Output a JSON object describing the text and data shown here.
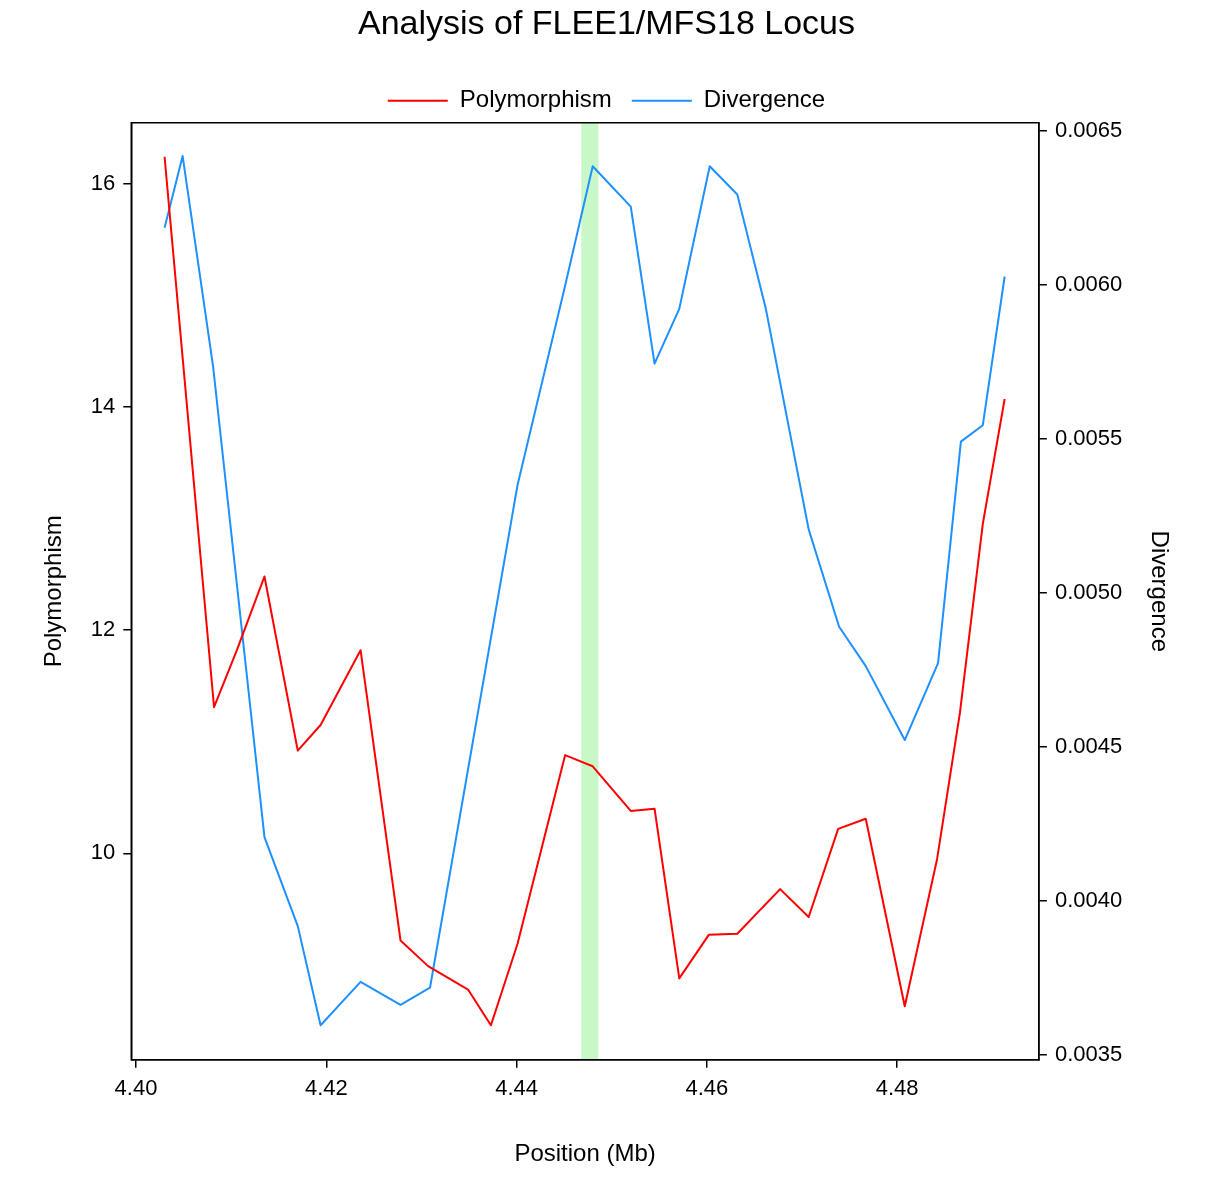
{
  "chart_data": {
    "type": "line",
    "title": "Analysis of FLEE1/MFS18 Locus",
    "xlabel": "Position (Mb)",
    "ylabel": "Polymorphism",
    "y2label": "Divergence",
    "xlim": [
      4.3995,
      4.4949
    ],
    "xticks": [
      {
        "value": 4.4,
        "label": "4.40"
      },
      4.42,
      4.44,
      4.46,
      4.48
    ],
    "ylim": [
      8.151,
      16.544
    ],
    "yticks": [
      10,
      12,
      14,
      16
    ],
    "y2lim": [
      0.003484,
      0.006526
    ],
    "y2ticks": [
      0.0035,
      {
        "value": 0.004,
        "label": "0.0040"
      },
      0.0045,
      {
        "value": 0.005,
        "label": "0.0050"
      },
      0.0055,
      {
        "value": 0.006,
        "label": "0.0060"
      },
      0.0065
    ],
    "legend": "top",
    "grid": false,
    "bands": [
      {
        "axis": "x",
        "from": 4.4468,
        "to": 4.4486,
        "color": "#c8f8c8"
      }
    ],
    "series": [
      {
        "name": "Polymorphism",
        "color": "#ff0000",
        "x": [
          4.403,
          4.4082,
          4.4106,
          4.4135,
          4.417,
          4.4194,
          4.4236,
          4.4278,
          4.4307,
          4.4349,
          4.4373,
          4.4401,
          4.4451,
          4.448,
          4.452,
          4.4545,
          4.4571,
          4.4602,
          4.4632,
          4.4677,
          4.4707,
          4.4738,
          4.4767,
          4.4808,
          4.4842,
          4.4866,
          4.489,
          4.4913
        ],
        "values": [
          16.24,
          11.31,
          11.82,
          12.48,
          10.92,
          11.15,
          11.82,
          9.22,
          8.99,
          8.78,
          8.46,
          9.19,
          10.88,
          10.78,
          10.38,
          10.4,
          8.88,
          9.27,
          9.28,
          9.68,
          9.43,
          10.22,
          10.31,
          8.63,
          9.95,
          11.26,
          12.95,
          14.07
        ]
      },
      {
        "name": "Divergence",
        "color": "#1e90ff",
        "axis": "y2",
        "x": [
          4.403,
          4.4049,
          4.4081,
          4.4135,
          4.417,
          4.4194,
          4.4236,
          4.4278,
          4.4309,
          4.4401,
          4.4451,
          4.448,
          4.452,
          4.4545,
          4.4571,
          4.4603,
          4.4632,
          4.4662,
          4.4707,
          4.4739,
          4.4767,
          4.4808,
          4.4843,
          4.4867,
          4.489,
          4.4913
        ],
        "values": [
          0.006185,
          0.006418,
          0.005735,
          0.004207,
          0.003918,
          0.003596,
          0.003737,
          0.003662,
          0.003718,
          0.00535,
          0.005997,
          0.006385,
          0.006254,
          0.005744,
          0.005922,
          0.006385,
          0.006293,
          0.005922,
          0.005206,
          0.00489,
          0.004762,
          0.004522,
          0.004772,
          0.005491,
          0.005544,
          0.006027
        ]
      }
    ]
  }
}
